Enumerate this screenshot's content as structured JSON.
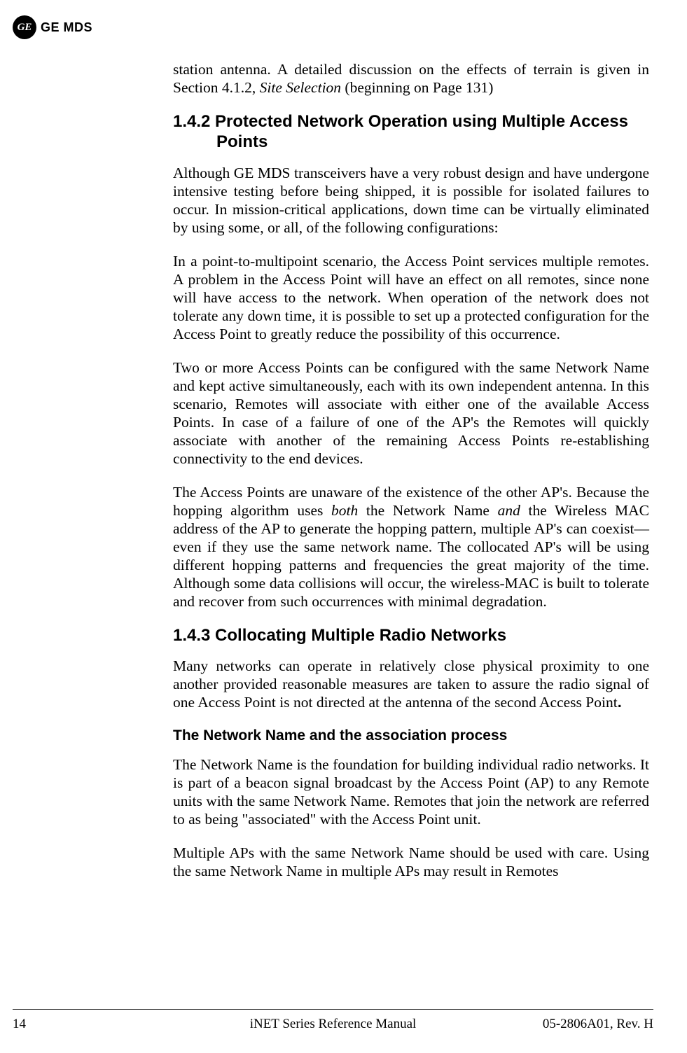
{
  "header": {
    "logo_text": "GE",
    "brand": "GE MDS"
  },
  "content": {
    "intro_para": "station antenna. A detailed discussion on the effects of terrain is given in Section 4.1.2, ",
    "intro_italic": "Site Selection",
    "intro_tail": " (beginning on Page 131)",
    "h2_142": "1.4.2 Protected Network Operation using Multiple Access Points",
    "p142_1": "Although GE MDS transceivers have a very robust design and have undergone intensive testing before being shipped, it is possible for isolated failures to occur. In mission-critical applications, down time can be virtually eliminated by using some, or all, of the following configurations:",
    "p142_2": "In a point-to-multipoint scenario, the Access Point services multiple remotes. A problem in the Access Point will have an effect on all remotes, since none will have access to the network. When operation of the network does not tolerate any down time, it is possible to set up a protected configuration for the Access Point to greatly reduce the possibility of this occurrence.",
    "p142_3": "Two or more Access Points can be configured with the same Network Name and kept active simultaneously, each with its own independent antenna. In this scenario, Remotes will associate with either one of the available Access Points. In case of a failure of one of the AP's the Remotes will quickly associate with another of the remaining Access Points re-establishing connectivity to the end devices.",
    "p142_4a": "The Access Points are unaware of the existence of the other AP's. Because the hopping algorithm uses ",
    "p142_4_both": "both",
    "p142_4b": " the Network Name ",
    "p142_4_and": "and",
    "p142_4c": " the Wireless MAC address of the AP to generate the hopping pattern, multiple AP's can coexist—even if they use the same network name. The collocated AP's will be using different hopping patterns and frequencies the great majority of the time. Although some data collisions will occur, the wireless-MAC is built to tolerate and recover from such occurrences with minimal degradation.",
    "h2_143": "1.4.3 Collocating Multiple Radio Networks",
    "p143_1a": "Many networks can operate in relatively close physical proximity to one another provided reasonable measures are taken to assure the radio signal of one Access Point is not directed at the antenna of the second Access Point",
    "p143_1_dot": ".",
    "h3_nn": "The Network Name and the association process",
    "pnn_1": "The Network Name is the foundation for building individual radio networks. It is part of a beacon signal broadcast by the Access Point (AP) to any Remote units with the same Network Name. Remotes that join the network are referred to as being \"associated\" with the Access Point unit.",
    "pnn_2": "Multiple APs with the same Network Name should be used with care. Using the same Network Name in multiple APs may result in Remotes"
  },
  "footer": {
    "page": "14",
    "center": "iNET Series Reference Manual",
    "right": "05-2806A01, Rev. H"
  }
}
